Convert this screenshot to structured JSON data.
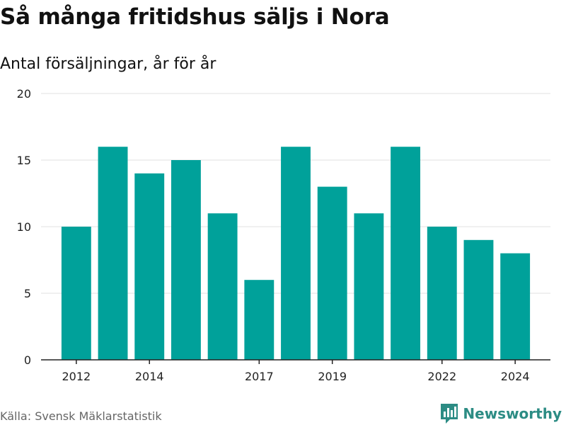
{
  "title": "Så många fritidshus säljs i Nora",
  "subtitle": "Antal försäljningar, år för år",
  "source": "Källa: Svensk Mäklarstatistik",
  "brand": {
    "name": "Newsworthy",
    "icon": "bar-chart-logo-icon",
    "color": "#2c8c84"
  },
  "chart_data": {
    "type": "bar",
    "categories": [
      "2012",
      "2013",
      "2014",
      "2015",
      "2016",
      "2017",
      "2018",
      "2019",
      "2020",
      "2021",
      "2022",
      "2023",
      "2024"
    ],
    "values": [
      10,
      16,
      14,
      15,
      11,
      6,
      16,
      13,
      11,
      16,
      10,
      9,
      8
    ],
    "x_tick_labels": [
      "2012",
      "2014",
      "2017",
      "2019",
      "2022",
      "2024"
    ],
    "y_ticks": [
      0,
      5,
      10,
      15,
      20
    ],
    "ylim": [
      0,
      20
    ],
    "grid": true,
    "bar_color": "#00a19a",
    "grid_color": "#e0e0e0",
    "axis_color": "#222222"
  }
}
